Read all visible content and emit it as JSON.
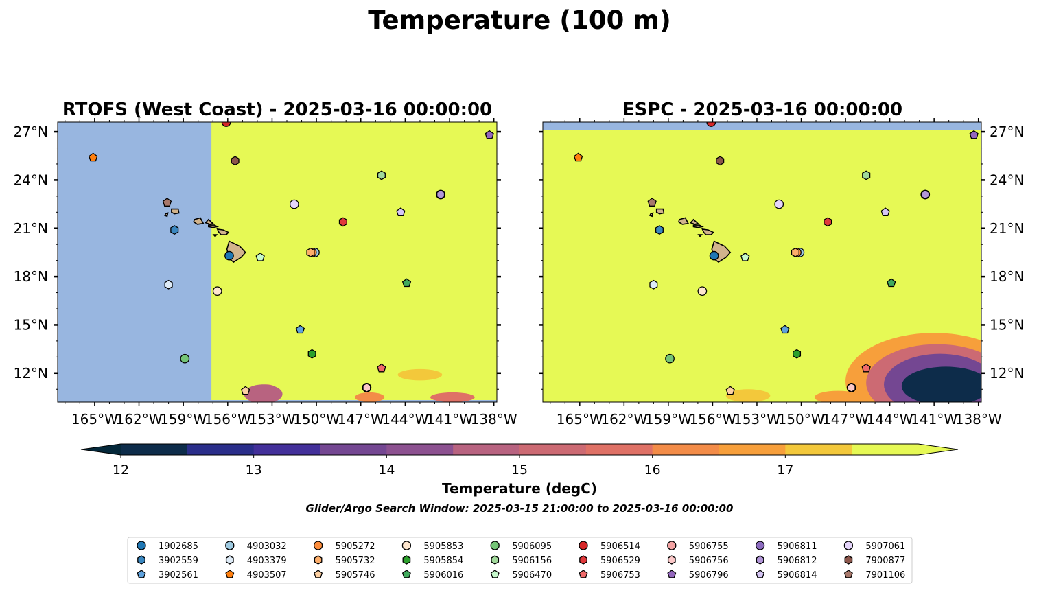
{
  "figure": {
    "title": "Temperature (100 m)",
    "subtitle": "Glider/Argo Search Window: 2025-03-15 21:00:00 to 2025-03-16 00:00:00"
  },
  "colors": {
    "ocean_out_of_domain": "#98b6e0",
    "temperature_max": "#e6f955",
    "land": "#d2b48c",
    "colormap": [
      "#04283a",
      "#0d2c4a",
      "#192e6a",
      "#2a2e8a",
      "#43309a",
      "#5b3a98",
      "#744792",
      "#8c5190",
      "#a25b87",
      "#b86380",
      "#cc6a73",
      "#df7166",
      "#ee7c55",
      "#f38c48",
      "#f79f3b",
      "#f6b23b",
      "#f3c83b",
      "#e6f955"
    ]
  },
  "chart_data": [
    {
      "type": "heatmap",
      "title": "RTOFS (West Coast) - 2025-03-16 00:00:00",
      "x_ticks": [
        "165°W",
        "162°W",
        "159°W",
        "156°W",
        "153°W",
        "150°W",
        "147°W",
        "144°W",
        "141°W",
        "138°W"
      ],
      "y_ticks": [
        "27°N",
        "24°N",
        "21°N",
        "18°N",
        "15°N",
        "12°N"
      ],
      "xlim": [
        -167.5,
        -137.8
      ],
      "ylim": [
        10.2,
        27.6
      ],
      "model_domain_west_edge_lon": -157.1,
      "background_temperature": 17.6
    },
    {
      "type": "heatmap",
      "title": "ESPC - 2025-03-16 00:00:00",
      "x_ticks": [
        "165°W",
        "162°W",
        "159°W",
        "156°W",
        "153°W",
        "150°W",
        "147°W",
        "144°W",
        "141°W",
        "138°W"
      ],
      "y_ticks": [
        "27°N",
        "24°N",
        "21°N",
        "18°N",
        "15°N",
        "12°N"
      ],
      "xlim": [
        -167.5,
        -137.8
      ],
      "ylim": [
        10.2,
        27.6
      ],
      "model_domain_north_edge_lat": 27.1,
      "background_temperature": 17.6
    }
  ],
  "colorbar": {
    "label": "Temperature (degC)",
    "min": 11.75,
    "max": 17.75,
    "ticks": [
      "12",
      "13",
      "14",
      "15",
      "16",
      "17"
    ],
    "levels": [
      12,
      12.5,
      13,
      13.5,
      14,
      14.5,
      15,
      15.5,
      16,
      16.5,
      17,
      17.5
    ]
  },
  "floats": [
    {
      "id": "1902685",
      "marker": "circle",
      "color": "#1f77b4",
      "lon": -155.9,
      "lat": 19.3
    },
    {
      "id": "3902559",
      "marker": "hexagon",
      "color": "#3a87c0",
      "lon": -159.6,
      "lat": 20.9
    },
    {
      "id": "3902561",
      "marker": "pentagon",
      "color": "#5fa2dd",
      "lon": -151.1,
      "lat": 14.7
    },
    {
      "id": "4903032",
      "marker": "circle",
      "color": "#9ecae1",
      "lon": -150.1,
      "lat": 19.5
    },
    {
      "id": "4903379",
      "marker": "hexagon",
      "color": "#deebf7",
      "lon": -160.0,
      "lat": 17.5
    },
    {
      "id": "4903507",
      "marker": "pentagon",
      "color": "#ff7f0e",
      "lon": -165.1,
      "lat": 25.4
    },
    {
      "id": "5905272",
      "marker": "circle",
      "color": "#fd8d3c",
      "lon": -150.3,
      "lat": 19.5
    },
    {
      "id": "5905732",
      "marker": "hexagon",
      "color": "#fdae6b",
      "lon": -150.4,
      "lat": 19.5
    },
    {
      "id": "5905746",
      "marker": "pentagon",
      "color": "#fdd0a2",
      "lon": -154.8,
      "lat": 10.9
    },
    {
      "id": "5905853",
      "marker": "circle",
      "color": "#fee6ce",
      "lon": -156.7,
      "lat": 17.1
    },
    {
      "id": "5905854",
      "marker": "hexagon",
      "color": "#2ca02c",
      "lon": -150.3,
      "lat": 13.2
    },
    {
      "id": "5906016",
      "marker": "pentagon",
      "color": "#41ab5d",
      "lon": -143.9,
      "lat": 17.6
    },
    {
      "id": "5906095",
      "marker": "circle",
      "color": "#74c476",
      "lon": -158.9,
      "lat": 12.9
    },
    {
      "id": "5906156",
      "marker": "hexagon",
      "color": "#a1d99b",
      "lon": -145.6,
      "lat": 24.3
    },
    {
      "id": "5906470",
      "marker": "pentagon",
      "color": "#c7f9cc",
      "lon": -153.8,
      "lat": 19.2
    },
    {
      "id": "5906514",
      "marker": "circle",
      "color": "#d62728",
      "lon": -156.1,
      "lat": 27.6
    },
    {
      "id": "5906529",
      "marker": "hexagon",
      "color": "#e0393b",
      "lon": -148.2,
      "lat": 21.4
    },
    {
      "id": "5906753",
      "marker": "pentagon",
      "color": "#f06a6a",
      "lon": -145.6,
      "lat": 12.3
    },
    {
      "id": "5906755",
      "marker": "circle",
      "color": "#f4a3a3",
      "lon": -146.6,
      "lat": 11.1
    },
    {
      "id": "5906756",
      "marker": "hexagon",
      "color": "#fbc8c8",
      "lon": -146.6,
      "lat": 11.1
    },
    {
      "id": "5906796",
      "marker": "pentagon",
      "color": "#9467bd",
      "lon": -138.3,
      "lat": 26.8
    },
    {
      "id": "5906811",
      "marker": "circle",
      "color": "#8c6bbf",
      "lon": -141.6,
      "lat": 23.1
    },
    {
      "id": "5906812",
      "marker": "hexagon",
      "color": "#b296d8",
      "lon": -141.6,
      "lat": 23.1
    },
    {
      "id": "5906814",
      "marker": "pentagon",
      "color": "#d6c6f5",
      "lon": -144.3,
      "lat": 22.0
    },
    {
      "id": "5907061",
      "marker": "circle",
      "color": "#e5d5fb",
      "lon": -151.5,
      "lat": 22.5
    },
    {
      "id": "7900877",
      "marker": "hexagon",
      "color": "#8c564b",
      "lon": -155.5,
      "lat": 25.2
    },
    {
      "id": "7901106",
      "marker": "pentagon",
      "color": "#a8786b",
      "lon": -160.1,
      "lat": 22.6
    }
  ]
}
